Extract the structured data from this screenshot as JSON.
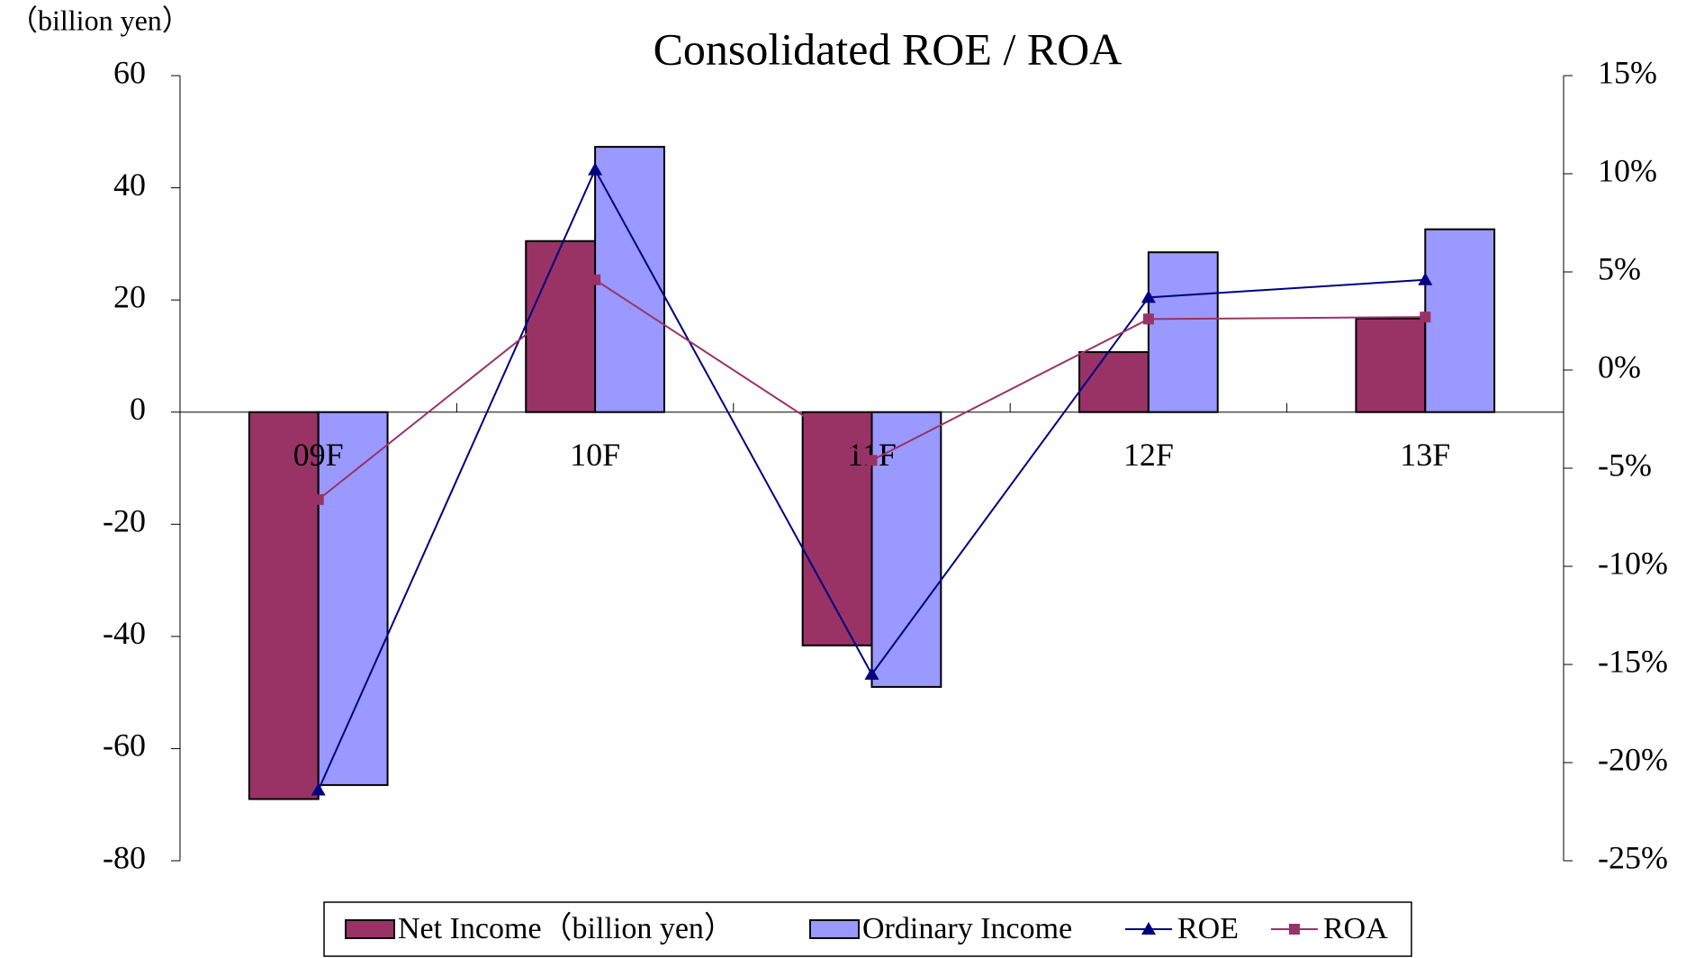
{
  "chart_data": {
    "type": "bar-line",
    "title": "Consolidated ROE / ROA",
    "y_unit_label": "（billion yen）",
    "categories": [
      "09F",
      "10F",
      "11F",
      "12F",
      "13F"
    ],
    "series": [
      {
        "name": "Net Income（billion yen）",
        "type": "bar",
        "color": "#993366",
        "values": [
          -69,
          30.5,
          -41.6,
          10.7,
          16.7
        ]
      },
      {
        "name": "Ordinary Income",
        "type": "bar",
        "color": "#9999ff",
        "values": [
          -66.5,
          47.3,
          -49,
          28.5,
          32.6
        ]
      },
      {
        "name": "ROE",
        "type": "line",
        "marker": "triangle",
        "color": "#000080",
        "axis": "y2",
        "values": [
          -21.4,
          10.2,
          -15.5,
          3.7,
          4.6
        ]
      },
      {
        "name": "ROA",
        "type": "line",
        "marker": "square",
        "color": "#993366",
        "axis": "y2",
        "values": [
          -6.6,
          4.6,
          -4.6,
          2.6,
          2.7
        ]
      }
    ],
    "ylim": [
      -80,
      60
    ],
    "yticks": [
      -80,
      -60,
      -40,
      -20,
      0,
      20,
      40,
      60
    ],
    "y2lim": [
      -25,
      15
    ],
    "y2ticks": [
      {
        "value": -25,
        "label": "-25%"
      },
      {
        "value": -20,
        "label": "-20%"
      },
      {
        "value": -15,
        "label": "-15%"
      },
      {
        "value": -10,
        "label": "-10%"
      },
      {
        "value": -5,
        "label": "-5%"
      },
      {
        "value": 0,
        "label": "0%"
      },
      {
        "value": 5,
        "label": "5%"
      },
      {
        "value": 10,
        "label": "10%"
      },
      {
        "value": 15,
        "label": "15%"
      }
    ],
    "legend": "bottom"
  }
}
